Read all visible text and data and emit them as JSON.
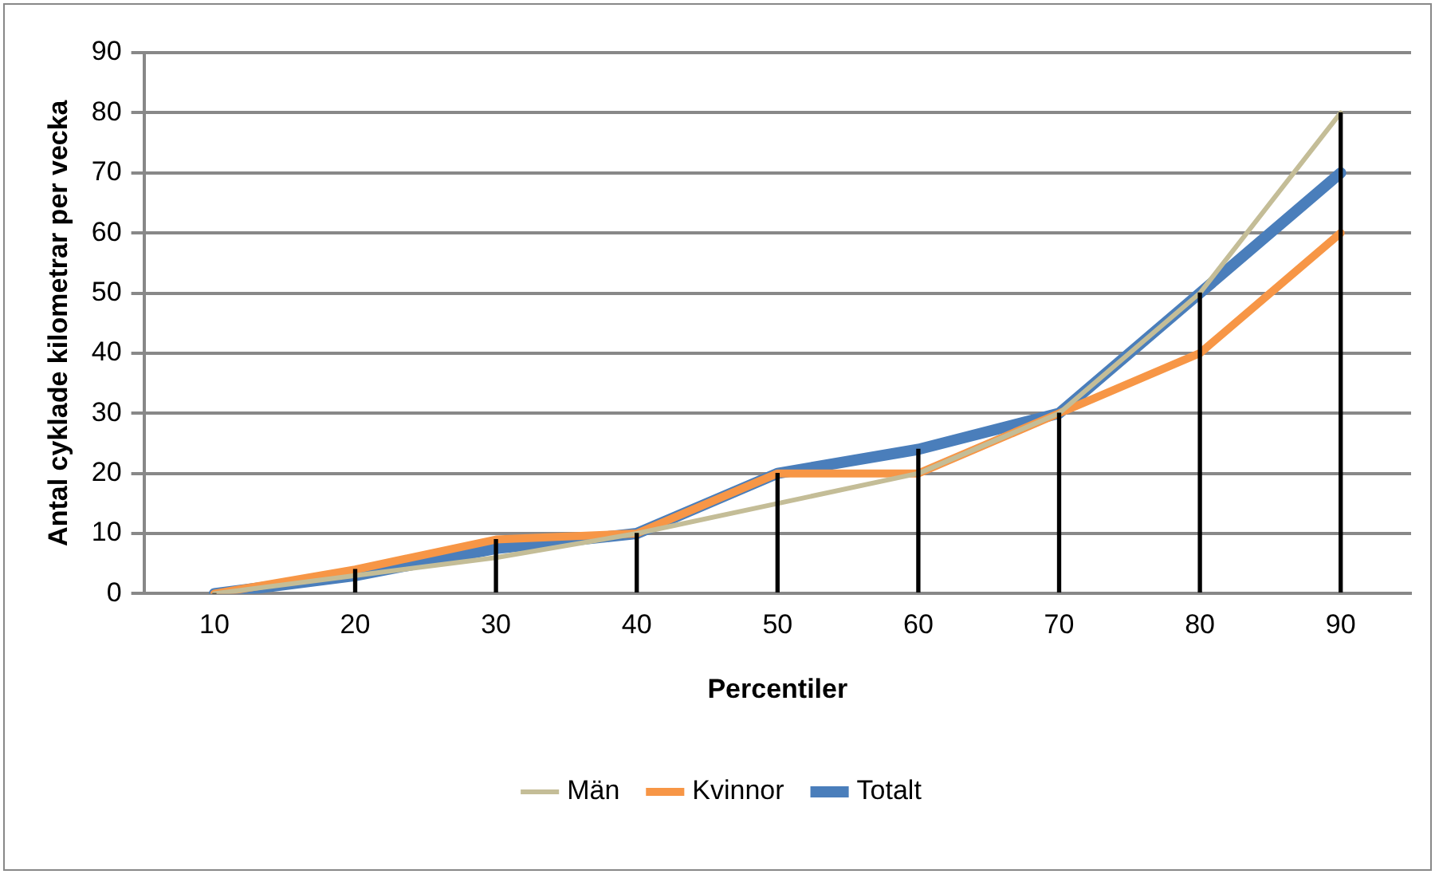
{
  "chart_data": {
    "type": "line",
    "xlabel": "Percentiler",
    "ylabel": "Antal cyklade kilometrar per vecka",
    "categories": [
      "10",
      "20",
      "30",
      "40",
      "50",
      "60",
      "70",
      "80",
      "90"
    ],
    "series": [
      {
        "name": "Totalt",
        "color": "#4a7ebb",
        "values": [
          0,
          3,
          7.5,
          10,
          20,
          24,
          30,
          50,
          70
        ]
      },
      {
        "name": "Kvinnor",
        "color": "#f79646",
        "values": [
          0,
          4,
          9,
          10,
          20,
          20,
          30,
          40,
          60
        ]
      },
      {
        "name": "Män",
        "color": "#c4bd97",
        "values": [
          0,
          3,
          6,
          10,
          15,
          20,
          30,
          50,
          80
        ]
      },
      {
        "type": "bar",
        "color": "#000000",
        "values": [
          0,
          4,
          9,
          10,
          20,
          24,
          30,
          50,
          80
        ]
      }
    ],
    "ylim": [
      0,
      90
    ],
    "yticks": [
      0,
      10,
      20,
      30,
      40,
      50,
      60,
      70,
      80,
      90
    ],
    "grid": "y",
    "legend": "bottom",
    "marker": "none",
    "line_style": "solid"
  }
}
